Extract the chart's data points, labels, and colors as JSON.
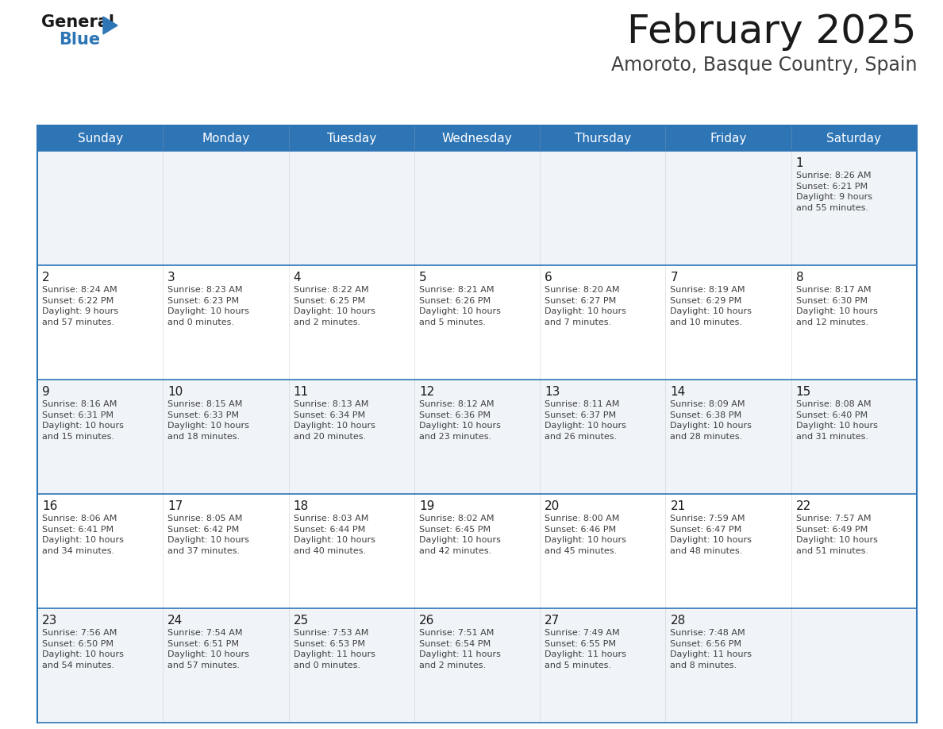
{
  "title": "February 2025",
  "subtitle": "Amoroto, Basque Country, Spain",
  "header_bg": "#2E75B6",
  "header_text_color": "#FFFFFF",
  "cell_bg_light": "#F0F4F8",
  "cell_bg_white": "#FFFFFF",
  "border_color": "#2E75B6",
  "days_of_week": [
    "Sunday",
    "Monday",
    "Tuesday",
    "Wednesday",
    "Thursday",
    "Friday",
    "Saturday"
  ],
  "title_color": "#1a1a1a",
  "subtitle_color": "#404040",
  "day_number_color": "#1a1a1a",
  "cell_text_color": "#404040",
  "logo_general_color": "#1a1a1a",
  "logo_blue_color": "#2E75B6",
  "logo_triangle_color": "#2E75B6",
  "calendar": [
    [
      {
        "day": null,
        "info": null
      },
      {
        "day": null,
        "info": null
      },
      {
        "day": null,
        "info": null
      },
      {
        "day": null,
        "info": null
      },
      {
        "day": null,
        "info": null
      },
      {
        "day": null,
        "info": null
      },
      {
        "day": 1,
        "info": "Sunrise: 8:26 AM\nSunset: 6:21 PM\nDaylight: 9 hours\nand 55 minutes."
      }
    ],
    [
      {
        "day": 2,
        "info": "Sunrise: 8:24 AM\nSunset: 6:22 PM\nDaylight: 9 hours\nand 57 minutes."
      },
      {
        "day": 3,
        "info": "Sunrise: 8:23 AM\nSunset: 6:23 PM\nDaylight: 10 hours\nand 0 minutes."
      },
      {
        "day": 4,
        "info": "Sunrise: 8:22 AM\nSunset: 6:25 PM\nDaylight: 10 hours\nand 2 minutes."
      },
      {
        "day": 5,
        "info": "Sunrise: 8:21 AM\nSunset: 6:26 PM\nDaylight: 10 hours\nand 5 minutes."
      },
      {
        "day": 6,
        "info": "Sunrise: 8:20 AM\nSunset: 6:27 PM\nDaylight: 10 hours\nand 7 minutes."
      },
      {
        "day": 7,
        "info": "Sunrise: 8:19 AM\nSunset: 6:29 PM\nDaylight: 10 hours\nand 10 minutes."
      },
      {
        "day": 8,
        "info": "Sunrise: 8:17 AM\nSunset: 6:30 PM\nDaylight: 10 hours\nand 12 minutes."
      }
    ],
    [
      {
        "day": 9,
        "info": "Sunrise: 8:16 AM\nSunset: 6:31 PM\nDaylight: 10 hours\nand 15 minutes."
      },
      {
        "day": 10,
        "info": "Sunrise: 8:15 AM\nSunset: 6:33 PM\nDaylight: 10 hours\nand 18 minutes."
      },
      {
        "day": 11,
        "info": "Sunrise: 8:13 AM\nSunset: 6:34 PM\nDaylight: 10 hours\nand 20 minutes."
      },
      {
        "day": 12,
        "info": "Sunrise: 8:12 AM\nSunset: 6:36 PM\nDaylight: 10 hours\nand 23 minutes."
      },
      {
        "day": 13,
        "info": "Sunrise: 8:11 AM\nSunset: 6:37 PM\nDaylight: 10 hours\nand 26 minutes."
      },
      {
        "day": 14,
        "info": "Sunrise: 8:09 AM\nSunset: 6:38 PM\nDaylight: 10 hours\nand 28 minutes."
      },
      {
        "day": 15,
        "info": "Sunrise: 8:08 AM\nSunset: 6:40 PM\nDaylight: 10 hours\nand 31 minutes."
      }
    ],
    [
      {
        "day": 16,
        "info": "Sunrise: 8:06 AM\nSunset: 6:41 PM\nDaylight: 10 hours\nand 34 minutes."
      },
      {
        "day": 17,
        "info": "Sunrise: 8:05 AM\nSunset: 6:42 PM\nDaylight: 10 hours\nand 37 minutes."
      },
      {
        "day": 18,
        "info": "Sunrise: 8:03 AM\nSunset: 6:44 PM\nDaylight: 10 hours\nand 40 minutes."
      },
      {
        "day": 19,
        "info": "Sunrise: 8:02 AM\nSunset: 6:45 PM\nDaylight: 10 hours\nand 42 minutes."
      },
      {
        "day": 20,
        "info": "Sunrise: 8:00 AM\nSunset: 6:46 PM\nDaylight: 10 hours\nand 45 minutes."
      },
      {
        "day": 21,
        "info": "Sunrise: 7:59 AM\nSunset: 6:47 PM\nDaylight: 10 hours\nand 48 minutes."
      },
      {
        "day": 22,
        "info": "Sunrise: 7:57 AM\nSunset: 6:49 PM\nDaylight: 10 hours\nand 51 minutes."
      }
    ],
    [
      {
        "day": 23,
        "info": "Sunrise: 7:56 AM\nSunset: 6:50 PM\nDaylight: 10 hours\nand 54 minutes."
      },
      {
        "day": 24,
        "info": "Sunrise: 7:54 AM\nSunset: 6:51 PM\nDaylight: 10 hours\nand 57 minutes."
      },
      {
        "day": 25,
        "info": "Sunrise: 7:53 AM\nSunset: 6:53 PM\nDaylight: 11 hours\nand 0 minutes."
      },
      {
        "day": 26,
        "info": "Sunrise: 7:51 AM\nSunset: 6:54 PM\nDaylight: 11 hours\nand 2 minutes."
      },
      {
        "day": 27,
        "info": "Sunrise: 7:49 AM\nSunset: 6:55 PM\nDaylight: 11 hours\nand 5 minutes."
      },
      {
        "day": 28,
        "info": "Sunrise: 7:48 AM\nSunset: 6:56 PM\nDaylight: 11 hours\nand 8 minutes."
      },
      {
        "day": null,
        "info": null
      }
    ]
  ]
}
